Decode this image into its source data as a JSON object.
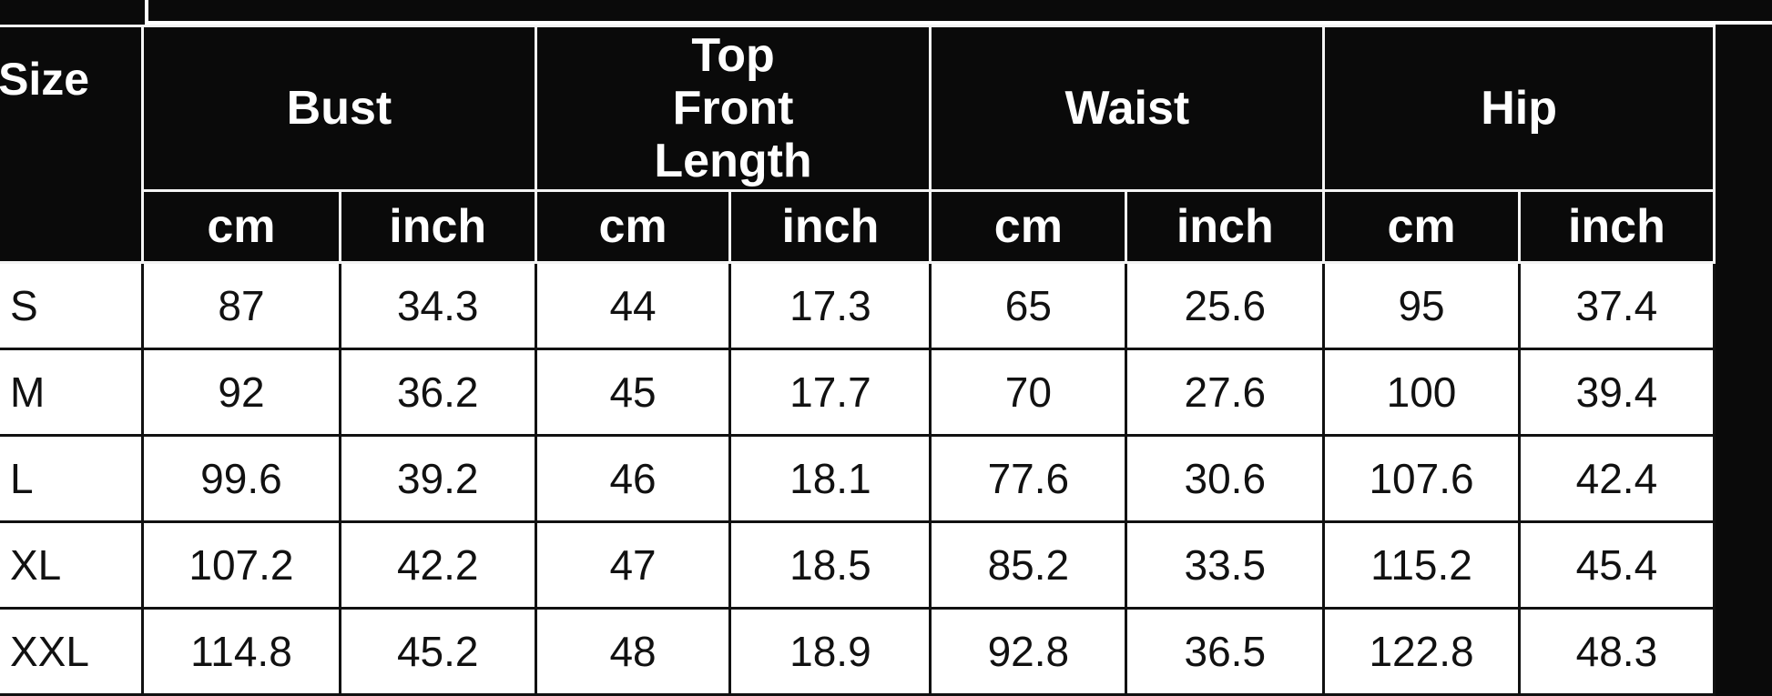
{
  "table": {
    "size_header": "Size",
    "groups": [
      "Bust",
      "Top Front Length",
      "Waist",
      "Hip"
    ],
    "units": [
      "cm",
      "inch"
    ],
    "rows": [
      {
        "size": "S",
        "values": [
          "87",
          "34.3",
          "44",
          "17.3",
          "65",
          "25.6",
          "95",
          "37.4"
        ]
      },
      {
        "size": "M",
        "values": [
          "92",
          "36.2",
          "45",
          "17.7",
          "70",
          "27.6",
          "100",
          "39.4"
        ]
      },
      {
        "size": "L",
        "values": [
          "99.6",
          "39.2",
          "46",
          "18.1",
          "77.6",
          "30.6",
          "107.6",
          "42.4"
        ]
      },
      {
        "size": "XL",
        "values": [
          "107.2",
          "42.2",
          "47",
          "18.5",
          "85.2",
          "33.5",
          "115.2",
          "45.4"
        ]
      },
      {
        "size": "XXL",
        "values": [
          "114.8",
          "45.2",
          "48",
          "18.9",
          "92.8",
          "36.5",
          "122.8",
          "48.3"
        ]
      }
    ]
  }
}
